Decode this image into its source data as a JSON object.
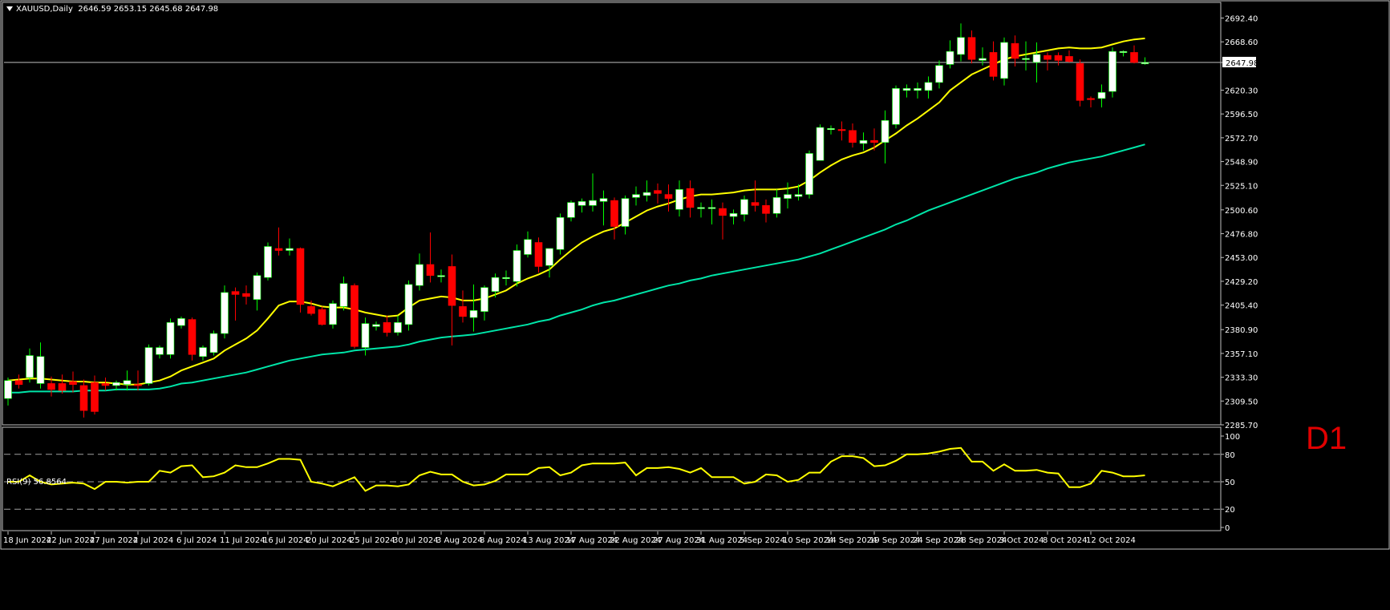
{
  "header": {
    "symbol": "XAUUSD,Daily",
    "ohlc": "2646.59 2653.15 2645.68 2647.98"
  },
  "watermark": "D1",
  "colors": {
    "background": "#000000",
    "frame": "#c0c0c0",
    "bull_body": "#ffffff",
    "bear_body": "#ff0000",
    "bull_wick": "#00ff00",
    "bear_wick": "#ff0000",
    "ma_fast": "#ffff00",
    "ma_slow": "#00e5a8",
    "rsi_line": "#ffff00",
    "price_line": "#c0c0c0"
  },
  "chart_data": [
    {
      "type": "candlestick",
      "title": "XAUUSD,Daily",
      "current_price": "2647.98",
      "ylim": [
        2285.7,
        2700
      ],
      "y_ticks": [
        "2692.40",
        "2668.60",
        "2647.98",
        "2620.30",
        "2596.50",
        "2572.70",
        "2548.90",
        "2525.10",
        "2500.60",
        "2476.80",
        "2453.00",
        "2429.20",
        "2405.40",
        "2380.90",
        "2357.10",
        "2333.30",
        "2309.50",
        "2285.70"
      ],
      "x_ticks": [
        "18 Jun 2024",
        "22 Jun 2024",
        "27 Jun 2024",
        "2 Jul 2024",
        "6 Jul 2024",
        "11 Jul 2024",
        "16 Jul 2024",
        "20 Jul 2024",
        "25 Jul 2024",
        "30 Jul 2024",
        "3 Aug 2024",
        "8 Aug 2024",
        "13 Aug 2024",
        "17 Aug 2024",
        "22 Aug 2024",
        "27 Aug 2024",
        "31 Aug 2024",
        "5 Sep 2024",
        "10 Sep 2024",
        "14 Sep 2024",
        "19 Sep 2024",
        "24 Sep 2024",
        "28 Sep 2024",
        "3 Oct 2024",
        "8 Oct 2024",
        "12 Oct 2024"
      ],
      "x_tick_bar_index": [
        0,
        4,
        8,
        12,
        16,
        20,
        24,
        28,
        32,
        36,
        40,
        44,
        48,
        52,
        56,
        60,
        64,
        68,
        72,
        76,
        80,
        84,
        88,
        92,
        96,
        100
      ],
      "candles": [
        {
          "o": 2312,
          "h": 2333,
          "l": 2305,
          "c": 2330
        },
        {
          "o": 2330,
          "h": 2336,
          "l": 2322,
          "c": 2326
        },
        {
          "o": 2333,
          "h": 2362,
          "l": 2328,
          "c": 2355
        },
        {
          "o": 2327,
          "h": 2368,
          "l": 2322,
          "c": 2354
        },
        {
          "o": 2327,
          "h": 2334,
          "l": 2314,
          "c": 2321
        },
        {
          "o": 2327,
          "h": 2336,
          "l": 2317,
          "c": 2320
        },
        {
          "o": 2329,
          "h": 2339,
          "l": 2318,
          "c": 2326
        },
        {
          "o": 2325,
          "h": 2331,
          "l": 2293,
          "c": 2300
        },
        {
          "o": 2328,
          "h": 2335,
          "l": 2296,
          "c": 2299
        },
        {
          "o": 2327,
          "h": 2333,
          "l": 2320,
          "c": 2325
        },
        {
          "o": 2325,
          "h": 2330,
          "l": 2320,
          "c": 2328
        },
        {
          "o": 2326,
          "h": 2340,
          "l": 2320,
          "c": 2330
        },
        {
          "o": 2326,
          "h": 2340,
          "l": 2320,
          "c": 2325
        },
        {
          "o": 2327,
          "h": 2366,
          "l": 2325,
          "c": 2363
        },
        {
          "o": 2356,
          "h": 2365,
          "l": 2352,
          "c": 2363
        },
        {
          "o": 2356,
          "h": 2392,
          "l": 2352,
          "c": 2388
        },
        {
          "o": 2385,
          "h": 2394,
          "l": 2382,
          "c": 2392
        },
        {
          "o": 2391,
          "h": 2393,
          "l": 2350,
          "c": 2356
        },
        {
          "o": 2354,
          "h": 2365,
          "l": 2350,
          "c": 2363
        },
        {
          "o": 2358,
          "h": 2380,
          "l": 2355,
          "c": 2377
        },
        {
          "o": 2377,
          "h": 2425,
          "l": 2372,
          "c": 2418
        },
        {
          "o": 2419,
          "h": 2423,
          "l": 2390,
          "c": 2416
        },
        {
          "o": 2417,
          "h": 2425,
          "l": 2406,
          "c": 2414
        },
        {
          "o": 2411,
          "h": 2438,
          "l": 2400,
          "c": 2435
        },
        {
          "o": 2433,
          "h": 2468,
          "l": 2430,
          "c": 2464
        },
        {
          "o": 2462,
          "h": 2483,
          "l": 2455,
          "c": 2460
        },
        {
          "o": 2460,
          "h": 2472,
          "l": 2455,
          "c": 2462
        },
        {
          "o": 2462,
          "h": 2463,
          "l": 2398,
          "c": 2406
        },
        {
          "o": 2404,
          "h": 2410,
          "l": 2395,
          "c": 2397
        },
        {
          "o": 2401,
          "h": 2404,
          "l": 2385,
          "c": 2386
        },
        {
          "o": 2386,
          "h": 2410,
          "l": 2382,
          "c": 2407
        },
        {
          "o": 2404,
          "h": 2434,
          "l": 2400,
          "c": 2427
        },
        {
          "o": 2425,
          "h": 2427,
          "l": 2362,
          "c": 2364
        },
        {
          "o": 2363,
          "h": 2393,
          "l": 2355,
          "c": 2387
        },
        {
          "o": 2384,
          "h": 2389,
          "l": 2380,
          "c": 2386
        },
        {
          "o": 2388,
          "h": 2395,
          "l": 2374,
          "c": 2378
        },
        {
          "o": 2378,
          "h": 2395,
          "l": 2375,
          "c": 2388
        },
        {
          "o": 2386,
          "h": 2430,
          "l": 2380,
          "c": 2426
        },
        {
          "o": 2425,
          "h": 2457,
          "l": 2420,
          "c": 2446
        },
        {
          "o": 2446,
          "h": 2478,
          "l": 2428,
          "c": 2435
        },
        {
          "o": 2434,
          "h": 2441,
          "l": 2428,
          "c": 2435
        },
        {
          "o": 2444,
          "h": 2456,
          "l": 2365,
          "c": 2405
        },
        {
          "o": 2404,
          "h": 2420,
          "l": 2388,
          "c": 2394
        },
        {
          "o": 2393,
          "h": 2426,
          "l": 2379,
          "c": 2400
        },
        {
          "o": 2399,
          "h": 2425,
          "l": 2390,
          "c": 2423
        },
        {
          "o": 2419,
          "h": 2437,
          "l": 2413,
          "c": 2433
        },
        {
          "o": 2432,
          "h": 2440,
          "l": 2425,
          "c": 2433
        },
        {
          "o": 2429,
          "h": 2466,
          "l": 2424,
          "c": 2460
        },
        {
          "o": 2456,
          "h": 2479,
          "l": 2453,
          "c": 2471
        },
        {
          "o": 2468,
          "h": 2473,
          "l": 2438,
          "c": 2444
        },
        {
          "o": 2445,
          "h": 2460,
          "l": 2433,
          "c": 2462
        },
        {
          "o": 2461,
          "h": 2497,
          "l": 2456,
          "c": 2493
        },
        {
          "o": 2493,
          "h": 2510,
          "l": 2489,
          "c": 2508
        },
        {
          "o": 2505,
          "h": 2512,
          "l": 2498,
          "c": 2509
        },
        {
          "o": 2505,
          "h": 2537,
          "l": 2499,
          "c": 2510
        },
        {
          "o": 2509,
          "h": 2520,
          "l": 2485,
          "c": 2512
        },
        {
          "o": 2510,
          "h": 2513,
          "l": 2471,
          "c": 2484
        },
        {
          "o": 2484,
          "h": 2515,
          "l": 2476,
          "c": 2512
        },
        {
          "o": 2513,
          "h": 2524,
          "l": 2505,
          "c": 2516
        },
        {
          "o": 2515,
          "h": 2530,
          "l": 2509,
          "c": 2518
        },
        {
          "o": 2520,
          "h": 2527,
          "l": 2507,
          "c": 2517
        },
        {
          "o": 2516,
          "h": 2526,
          "l": 2499,
          "c": 2512
        },
        {
          "o": 2501,
          "h": 2530,
          "l": 2494,
          "c": 2521
        },
        {
          "o": 2522,
          "h": 2530,
          "l": 2493,
          "c": 2503
        },
        {
          "o": 2503,
          "h": 2508,
          "l": 2493,
          "c": 2503
        },
        {
          "o": 2502,
          "h": 2511,
          "l": 2486,
          "c": 2503
        },
        {
          "o": 2502,
          "h": 2508,
          "l": 2471,
          "c": 2495
        },
        {
          "o": 2494,
          "h": 2501,
          "l": 2486,
          "c": 2497
        },
        {
          "o": 2496,
          "h": 2515,
          "l": 2489,
          "c": 2511
        },
        {
          "o": 2508,
          "h": 2530,
          "l": 2499,
          "c": 2505
        },
        {
          "o": 2505,
          "h": 2511,
          "l": 2488,
          "c": 2497
        },
        {
          "o": 2497,
          "h": 2521,
          "l": 2493,
          "c": 2513
        },
        {
          "o": 2512,
          "h": 2528,
          "l": 2502,
          "c": 2516
        },
        {
          "o": 2514,
          "h": 2526,
          "l": 2510,
          "c": 2516
        },
        {
          "o": 2516,
          "h": 2560,
          "l": 2512,
          "c": 2557
        },
        {
          "o": 2550,
          "h": 2586,
          "l": 2550,
          "c": 2583
        },
        {
          "o": 2581,
          "h": 2585,
          "l": 2576,
          "c": 2582
        },
        {
          "o": 2581,
          "h": 2589,
          "l": 2570,
          "c": 2580
        },
        {
          "o": 2580,
          "h": 2587,
          "l": 2563,
          "c": 2568
        },
        {
          "o": 2567,
          "h": 2578,
          "l": 2560,
          "c": 2570
        },
        {
          "o": 2570,
          "h": 2582,
          "l": 2560,
          "c": 2568
        },
        {
          "o": 2568,
          "h": 2600,
          "l": 2547,
          "c": 2590
        },
        {
          "o": 2586,
          "h": 2625,
          "l": 2582,
          "c": 2622
        },
        {
          "o": 2620,
          "h": 2626,
          "l": 2613,
          "c": 2622
        },
        {
          "o": 2620,
          "h": 2628,
          "l": 2612,
          "c": 2622
        },
        {
          "o": 2620,
          "h": 2634,
          "l": 2612,
          "c": 2628
        },
        {
          "o": 2628,
          "h": 2650,
          "l": 2622,
          "c": 2645
        },
        {
          "o": 2646,
          "h": 2670,
          "l": 2642,
          "c": 2659
        },
        {
          "o": 2656,
          "h": 2687,
          "l": 2649,
          "c": 2673
        },
        {
          "o": 2673,
          "h": 2680,
          "l": 2647,
          "c": 2651
        },
        {
          "o": 2650,
          "h": 2663,
          "l": 2645,
          "c": 2652
        },
        {
          "o": 2658,
          "h": 2669,
          "l": 2630,
          "c": 2634
        },
        {
          "o": 2632,
          "h": 2673,
          "l": 2625,
          "c": 2668
        },
        {
          "o": 2667,
          "h": 2675,
          "l": 2644,
          "c": 2652
        },
        {
          "o": 2652,
          "h": 2669,
          "l": 2640,
          "c": 2652
        },
        {
          "o": 2648,
          "h": 2668,
          "l": 2628,
          "c": 2656
        },
        {
          "o": 2655,
          "h": 2658,
          "l": 2640,
          "c": 2651
        },
        {
          "o": 2655,
          "h": 2658,
          "l": 2645,
          "c": 2650
        },
        {
          "o": 2654,
          "h": 2660,
          "l": 2648,
          "c": 2649
        },
        {
          "o": 2647,
          "h": 2651,
          "l": 2604,
          "c": 2610
        },
        {
          "o": 2612,
          "h": 2614,
          "l": 2603,
          "c": 2611
        },
        {
          "o": 2612,
          "h": 2626,
          "l": 2603,
          "c": 2618
        },
        {
          "o": 2619,
          "h": 2663,
          "l": 2613,
          "c": 2659
        },
        {
          "o": 2658,
          "h": 2660,
          "l": 2654,
          "c": 2659
        },
        {
          "o": 2658,
          "h": 2665,
          "l": 2647,
          "c": 2648
        },
        {
          "o": 2646.59,
          "h": 2653.15,
          "l": 2645.68,
          "c": 2647.98
        }
      ],
      "ma_fast": [
        2330,
        2331,
        2332,
        2332,
        2331,
        2330,
        2329,
        2329,
        2328,
        2328,
        2327,
        2326,
        2326,
        2328,
        2330,
        2334,
        2340,
        2344,
        2348,
        2352,
        2360,
        2366,
        2372,
        2380,
        2392,
        2405,
        2409,
        2409,
        2407,
        2404,
        2403,
        2403,
        2401,
        2398,
        2396,
        2394,
        2395,
        2403,
        2410,
        2412,
        2414,
        2413,
        2410,
        2410,
        2412,
        2416,
        2420,
        2427,
        2432,
        2436,
        2441,
        2451,
        2460,
        2468,
        2474,
        2479,
        2482,
        2488,
        2494,
        2500,
        2504,
        2507,
        2511,
        2514,
        2516,
        2516,
        2517,
        2518,
        2520,
        2521,
        2521,
        2521,
        2522,
        2524,
        2530,
        2538,
        2545,
        2551,
        2555,
        2558,
        2563,
        2570,
        2577,
        2585,
        2592,
        2600,
        2608,
        2620,
        2628,
        2636,
        2641,
        2646,
        2651,
        2654,
        2656,
        2658,
        2660,
        2662,
        2663,
        2662,
        2662,
        2663,
        2666,
        2669,
        2671,
        2672
      ],
      "ma_slow": [
        2318,
        2318,
        2319,
        2319,
        2319,
        2319,
        2319,
        2320,
        2320,
        2320,
        2321,
        2321,
        2321,
        2321,
        2322,
        2324,
        2327,
        2328,
        2330,
        2332,
        2334,
        2336,
        2338,
        2341,
        2344,
        2347,
        2350,
        2352,
        2354,
        2356,
        2357,
        2358,
        2360,
        2361,
        2362,
        2363,
        2364,
        2366,
        2369,
        2371,
        2373,
        2374,
        2375,
        2376,
        2378,
        2380,
        2382,
        2384,
        2386,
        2389,
        2391,
        2395,
        2398,
        2401,
        2405,
        2408,
        2410,
        2413,
        2416,
        2419,
        2422,
        2425,
        2427,
        2430,
        2432,
        2435,
        2437,
        2439,
        2441,
        2443,
        2445,
        2447,
        2449,
        2451,
        2454,
        2457,
        2461,
        2465,
        2469,
        2473,
        2477,
        2481,
        2486,
        2490,
        2495,
        2500,
        2504,
        2508,
        2512,
        2516,
        2520,
        2524,
        2528,
        2532,
        2535,
        2538,
        2542,
        2545,
        2548,
        2550,
        2552,
        2554,
        2557,
        2560,
        2563,
        2566
      ]
    },
    {
      "type": "line",
      "title": "RSI(9) 56.8564",
      "ylim": [
        0,
        100
      ],
      "y_ticks": [
        "100",
        "80",
        "50",
        "20",
        "0"
      ],
      "levels": [
        80,
        50,
        20
      ],
      "values": [
        50,
        50,
        57,
        50,
        47,
        48,
        49,
        48,
        42,
        50,
        50,
        49,
        50,
        50,
        62,
        60,
        67,
        68,
        55,
        56,
        60,
        68,
        66,
        66,
        70,
        75,
        75,
        74,
        50,
        48,
        45,
        50,
        55,
        40,
        46,
        46,
        45,
        47,
        57,
        61,
        58,
        58,
        50,
        46,
        47,
        51,
        58,
        58,
        58,
        65,
        66,
        57,
        60,
        68,
        70,
        70,
        70,
        71,
        57,
        65,
        65,
        66,
        64,
        60,
        65,
        55,
        55,
        55,
        48,
        50,
        58,
        57,
        50,
        52,
        60,
        60,
        72,
        78,
        78,
        76,
        67,
        68,
        73,
        80,
        80,
        81,
        83,
        86,
        87,
        72,
        72,
        62,
        69,
        62,
        62,
        63,
        60,
        59,
        44,
        44,
        48,
        62,
        60,
        56,
        56,
        57
      ]
    }
  ]
}
